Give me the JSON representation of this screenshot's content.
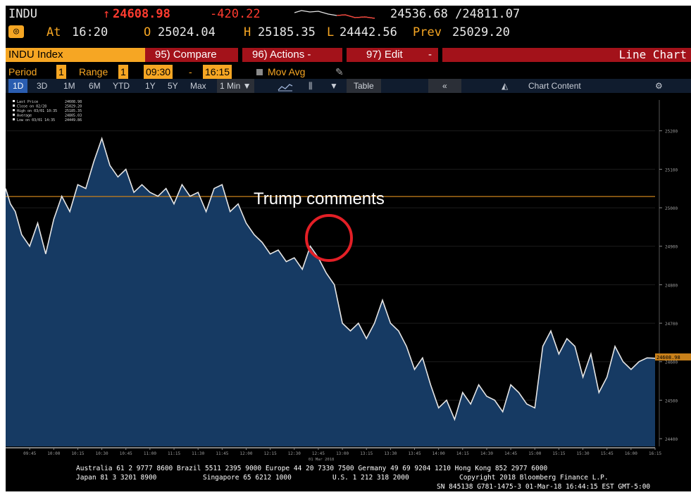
{
  "header": {
    "ticker": "INDU",
    "last_price": "24608.98",
    "arrow": "↑",
    "change": "-420.22",
    "range_text": "24536.68 /24811.07",
    "at_label": "At",
    "at_time": "16:20",
    "open_label": "O",
    "open": "25024.04",
    "high_label": "H",
    "high": "25185.35",
    "low_label": "L",
    "low": "24442.56",
    "prev_label": "Prev",
    "prev": "25029.20"
  },
  "toolbar": {
    "security": "INDU Index",
    "compare": "95) Compare",
    "actions": "96) Actions -",
    "edit": "97) Edit",
    "edit_caret": "-",
    "view": "Line Chart"
  },
  "controls": {
    "period_label": "Period",
    "period_value": "1",
    "range_label": "Range",
    "range_value": "1",
    "start_time": "09:30",
    "dash": "-",
    "end_time": "16:15",
    "mov_avg": "Mov Avg",
    "ranges": [
      "1D",
      "3D",
      "1M",
      "6M",
      "YTD",
      "1Y",
      "5Y",
      "Max"
    ],
    "interval": "1 Min ▼",
    "table": "Table",
    "back": "«",
    "chart_content": "Chart Content",
    "gear": "⚙"
  },
  "legend": [
    {
      "label": "Last Price",
      "value": "24608.98"
    },
    {
      "label": "Close on 02/28",
      "value": "25029.20"
    },
    {
      "label": "High on 03/01 10:35",
      "value": "25185.35"
    },
    {
      "label": "Average",
      "value": "24805.03"
    },
    {
      "label": "Low on 03/01 14:35",
      "value": "24449.86"
    }
  ],
  "annotation": "Trump comments",
  "footer": {
    "line1": "Australia 61 2 9777 8600 Brazil 5511 2395 9000 Europe 44 20 7330 7500 Germany 49 69 9204 1210 Hong Kong 852 2977 6000",
    "line2a": "Japan 81 3 3201 8900",
    "line2b": "Singapore 65 6212 1000",
    "line2c": "U.S. 1 212 318 2000",
    "line2d": "Copyright 2018 Bloomberg Finance L.P.",
    "line3": "SN 845138 G781-1475-3 01-Mar-18 16:44:15 EST  GMT-5:00"
  },
  "colors": {
    "price_line": "#e6e6e6",
    "area_fill": "#163a63",
    "prev_close_line": "#c8801a",
    "annotation_circle": "#e31f26",
    "toolbar_red": "#a3121a",
    "accent_orange": "#f6a623"
  },
  "chart_data": {
    "type": "area",
    "xlabel": "",
    "ylabel": "",
    "date_label": "01 Mar 2018",
    "x_ticks": [
      "09:45",
      "10:00",
      "10:15",
      "10:30",
      "10:45",
      "11:00",
      "11:15",
      "11:30",
      "11:45",
      "12:00",
      "12:15",
      "12:30",
      "12:45",
      "13:00",
      "13:15",
      "13:30",
      "13:45",
      "14:00",
      "14:15",
      "14:30",
      "14:45",
      "15:00",
      "15:15",
      "15:30",
      "15:45",
      "16:00",
      "16:15"
    ],
    "y_ticks": [
      25200,
      25100,
      25000,
      24900,
      24800,
      24700,
      24600,
      24500,
      24400
    ],
    "ylim": [
      24380,
      25280
    ],
    "prev_close": 25029.2,
    "last_price": 24608.98,
    "last_price_label": "24608.98",
    "series": [
      {
        "x": [
          "09:30",
          "09:33",
          "09:36",
          "09:40",
          "09:45",
          "09:50",
          "09:55",
          "10:00",
          "10:05",
          "10:10",
          "10:15",
          "10:20",
          "10:25",
          "10:30",
          "10:35",
          "10:40",
          "10:45",
          "10:50",
          "10:55",
          "11:00",
          "11:05",
          "11:10",
          "11:15",
          "11:20",
          "11:25",
          "11:30",
          "11:35",
          "11:40",
          "11:45",
          "11:50",
          "11:55",
          "12:00",
          "12:05",
          "12:10",
          "12:15",
          "12:20",
          "12:25",
          "12:30",
          "12:35",
          "12:40",
          "12:45",
          "12:50",
          "12:55",
          "13:00",
          "13:05",
          "13:10",
          "13:15",
          "13:20",
          "13:25",
          "13:30",
          "13:35",
          "13:40",
          "13:45",
          "13:50",
          "13:55",
          "14:00",
          "14:05",
          "14:10",
          "14:15",
          "14:20",
          "14:25",
          "14:30",
          "14:35",
          "14:40",
          "14:45",
          "14:50",
          "14:55",
          "15:00",
          "15:05",
          "15:10",
          "15:15",
          "15:20",
          "15:25",
          "15:30",
          "15:35",
          "15:40",
          "15:45",
          "15:50",
          "15:55",
          "16:00",
          "16:05",
          "16:10",
          "16:15"
        ],
        "values": [
          25050,
          25010,
          24990,
          24930,
          24900,
          24960,
          24880,
          24970,
          25030,
          24990,
          25060,
          25050,
          25120,
          25180,
          25110,
          25080,
          25100,
          25040,
          25060,
          25040,
          25030,
          25050,
          25010,
          25060,
          25030,
          25040,
          24990,
          25050,
          25060,
          24990,
          25010,
          24960,
          24930,
          24910,
          24880,
          24890,
          24860,
          24870,
          24840,
          24900,
          24870,
          24830,
          24800,
          24700,
          24680,
          24700,
          24660,
          24700,
          24760,
          24700,
          24680,
          24640,
          24580,
          24610,
          24540,
          24480,
          24500,
          24450,
          24520,
          24490,
          24540,
          24510,
          24500,
          24470,
          24540,
          24520,
          24490,
          24480,
          24640,
          24680,
          24620,
          24660,
          24640,
          24560,
          24620,
          24520,
          24560,
          24640,
          24600,
          24580,
          24600,
          24610,
          24608.98
        ]
      }
    ]
  }
}
